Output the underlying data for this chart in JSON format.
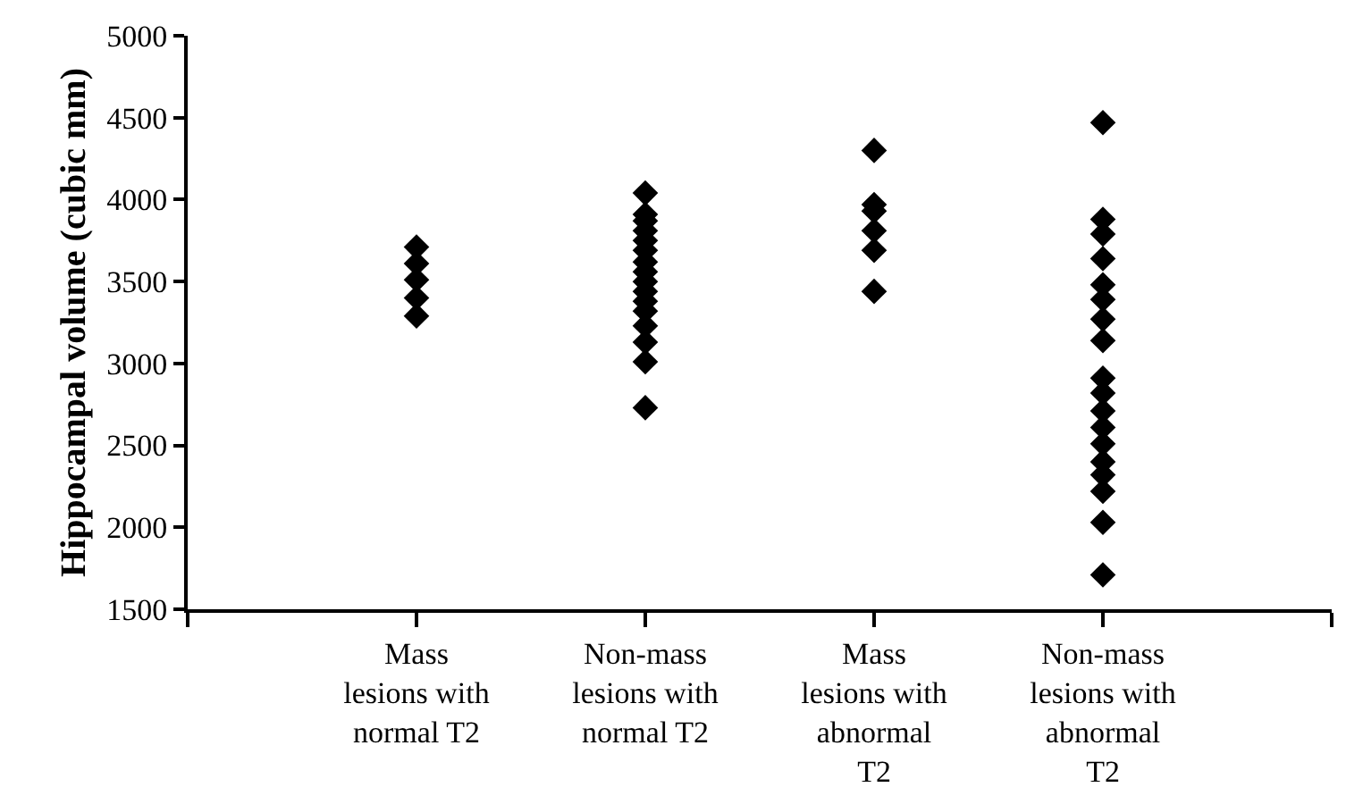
{
  "chart_data": {
    "type": "scatter",
    "ylabel": "Hippocampal volume (cubic mm)",
    "categories": [
      null,
      "Mass\nlesions with\nnormal T2",
      "Non-mass\nlesions with\nnormal T2",
      "Mass\nlesions with\nabnormal\nT2",
      "Non-mass\nlesions with\nabnormal\nT2",
      null
    ],
    "series": [
      {
        "color": "#000000",
        "x": [
          "Mass\nlesions with\nnormal T2",
          "Mass\nlesions with\nnormal T2",
          "Mass\nlesions with\nnormal T2",
          "Mass\nlesions with\nnormal T2",
          "Mass\nlesions with\nnormal T2"
        ],
        "values": [
          3710,
          3610,
          3510,
          3400,
          3290
        ]
      },
      {
        "color": "#000000",
        "x": [
          "Non-mass\nlesions with\nnormal T2",
          "Non-mass\nlesions with\nnormal T2",
          "Non-mass\nlesions with\nnormal T2",
          "Non-mass\nlesions with\nnormal T2",
          "Non-mass\nlesions with\nnormal T2",
          "Non-mass\nlesions with\nnormal T2",
          "Non-mass\nlesions with\nnormal T2",
          "Non-mass\nlesions with\nnormal T2",
          "Non-mass\nlesions with\nnormal T2",
          "Non-mass\nlesions with\nnormal T2",
          "Non-mass\nlesions with\nnormal T2",
          "Non-mass\nlesions with\nnormal T2",
          "Non-mass\nlesions with\nnormal T2",
          "Non-mass\nlesions with\nnormal T2",
          "Non-mass\nlesions with\nnormal T2",
          "Non-mass\nlesions with\nnormal T2"
        ],
        "values": [
          4040,
          3910,
          3870,
          3810,
          3750,
          3690,
          3620,
          3560,
          3500,
          3440,
          3380,
          3320,
          3230,
          3130,
          3010,
          2730
        ]
      },
      {
        "color": "#000000",
        "x": [
          "Mass\nlesions with\nabnormal\nT2",
          "Mass\nlesions with\nabnormal\nT2",
          "Mass\nlesions with\nabnormal\nT2",
          "Mass\nlesions with\nabnormal\nT2",
          "Mass\nlesions with\nabnormal\nT2",
          "Mass\nlesions with\nabnormal\nT2"
        ],
        "values": [
          4300,
          3970,
          3930,
          3810,
          3690,
          3440
        ]
      },
      {
        "color": "#000000",
        "x": [
          "Non-mass\nlesions with\nabnormal\nT2",
          "Non-mass\nlesions with\nabnormal\nT2",
          "Non-mass\nlesions with\nabnormal\nT2",
          "Non-mass\nlesions with\nabnormal\nT2",
          "Non-mass\nlesions with\nabnormal\nT2",
          "Non-mass\nlesions with\nabnormal\nT2",
          "Non-mass\nlesions with\nabnormal\nT2",
          "Non-mass\nlesions with\nabnormal\nT2",
          "Non-mass\nlesions with\nabnormal\nT2",
          "Non-mass\nlesions with\nabnormal\nT2",
          "Non-mass\nlesions with\nabnormal\nT2",
          "Non-mass\nlesions with\nabnormal\nT2",
          "Non-mass\nlesions with\nabnormal\nT2",
          "Non-mass\nlesions with\nabnormal\nT2",
          "Non-mass\nlesions with\nabnormal\nT2",
          "Non-mass\nlesions with\nabnormal\nT2",
          "Non-mass\nlesions with\nabnormal\nT2",
          "Non-mass\nlesions with\nabnormal\nT2"
        ],
        "values": [
          4470,
          3880,
          3790,
          3640,
          3480,
          3390,
          3270,
          3140,
          2910,
          2820,
          2710,
          2610,
          2510,
          2400,
          2320,
          2220,
          2030,
          1710
        ]
      }
    ],
    "ylim": [
      1500,
      5000
    ],
    "yticks": [
      1500,
      2000,
      2500,
      3000,
      3500,
      4000,
      4500,
      5000
    ],
    "marker": "diamond"
  }
}
